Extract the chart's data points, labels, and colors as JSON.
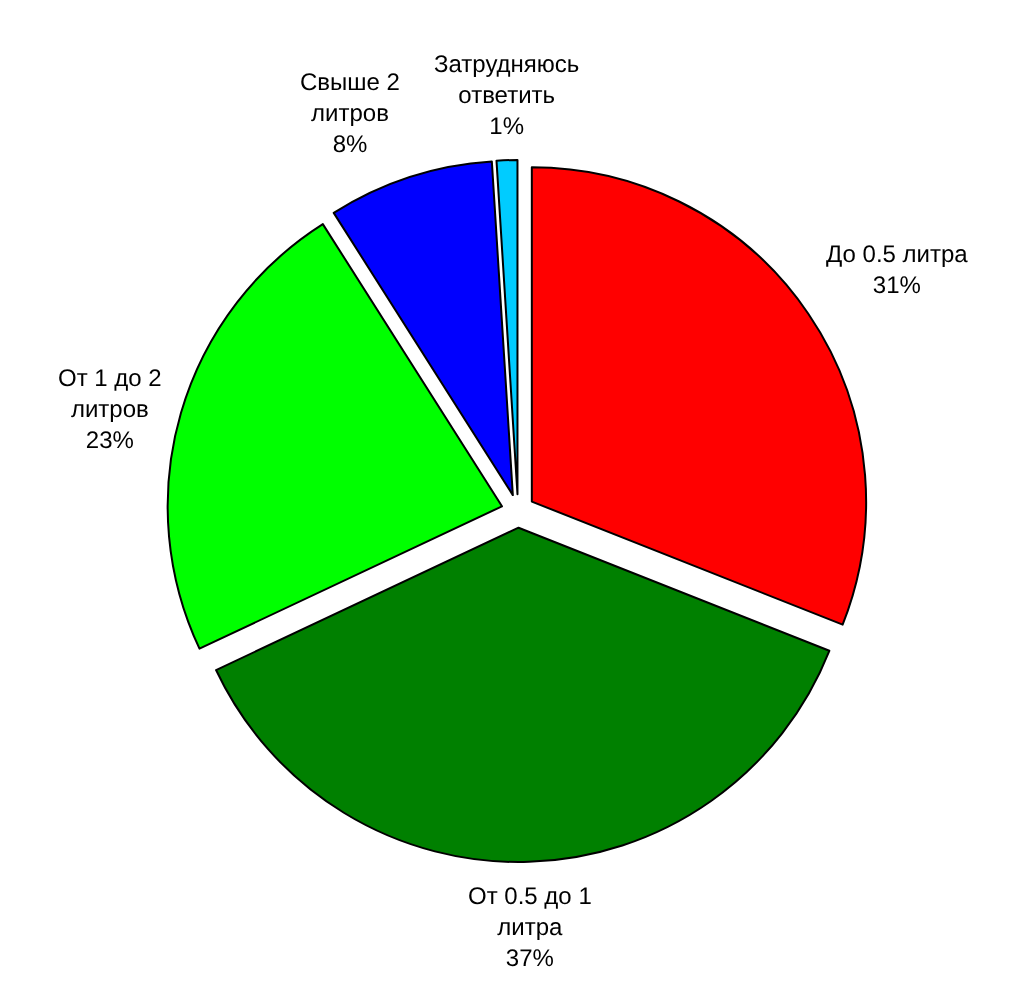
{
  "chart_data": {
    "type": "pie",
    "categories": [
      "До 0.5 литра",
      "От 0.5 до 1 литра",
      "От 1 до 2 литров",
      "Свыше 2 литров",
      "Затрудняюсь ответить"
    ],
    "values": [
      31,
      37,
      23,
      8,
      1
    ],
    "value_labels": [
      "31%",
      "37%",
      "23%",
      "8%",
      "1%"
    ],
    "colors": [
      "#ff0000",
      "#008000",
      "#00ff00",
      "#0000ff",
      "#00ccff"
    ],
    "legend": false
  }
}
